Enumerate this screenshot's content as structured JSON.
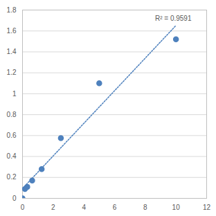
{
  "chart_data": {
    "type": "scatter",
    "x": [
      0,
      0.16,
      0.31,
      0.63,
      1.25,
      2.5,
      5,
      10
    ],
    "values": [
      0,
      0.09,
      0.11,
      0.17,
      0.28,
      0.575,
      1.1,
      1.52
    ],
    "color": "#4e81bd",
    "marker": "circle",
    "line_style": "dotted",
    "annotations": [
      "R² = 0.9591"
    ],
    "xlim": [
      0,
      12
    ],
    "xticks": [
      0,
      2,
      4,
      6,
      8,
      10,
      12
    ],
    "ylim": [
      0,
      1.8
    ],
    "yticks": [
      0,
      0.2,
      0.4,
      0.6,
      0.8,
      1,
      1.2,
      1.4,
      1.6,
      1.8
    ],
    "grid": true
  }
}
